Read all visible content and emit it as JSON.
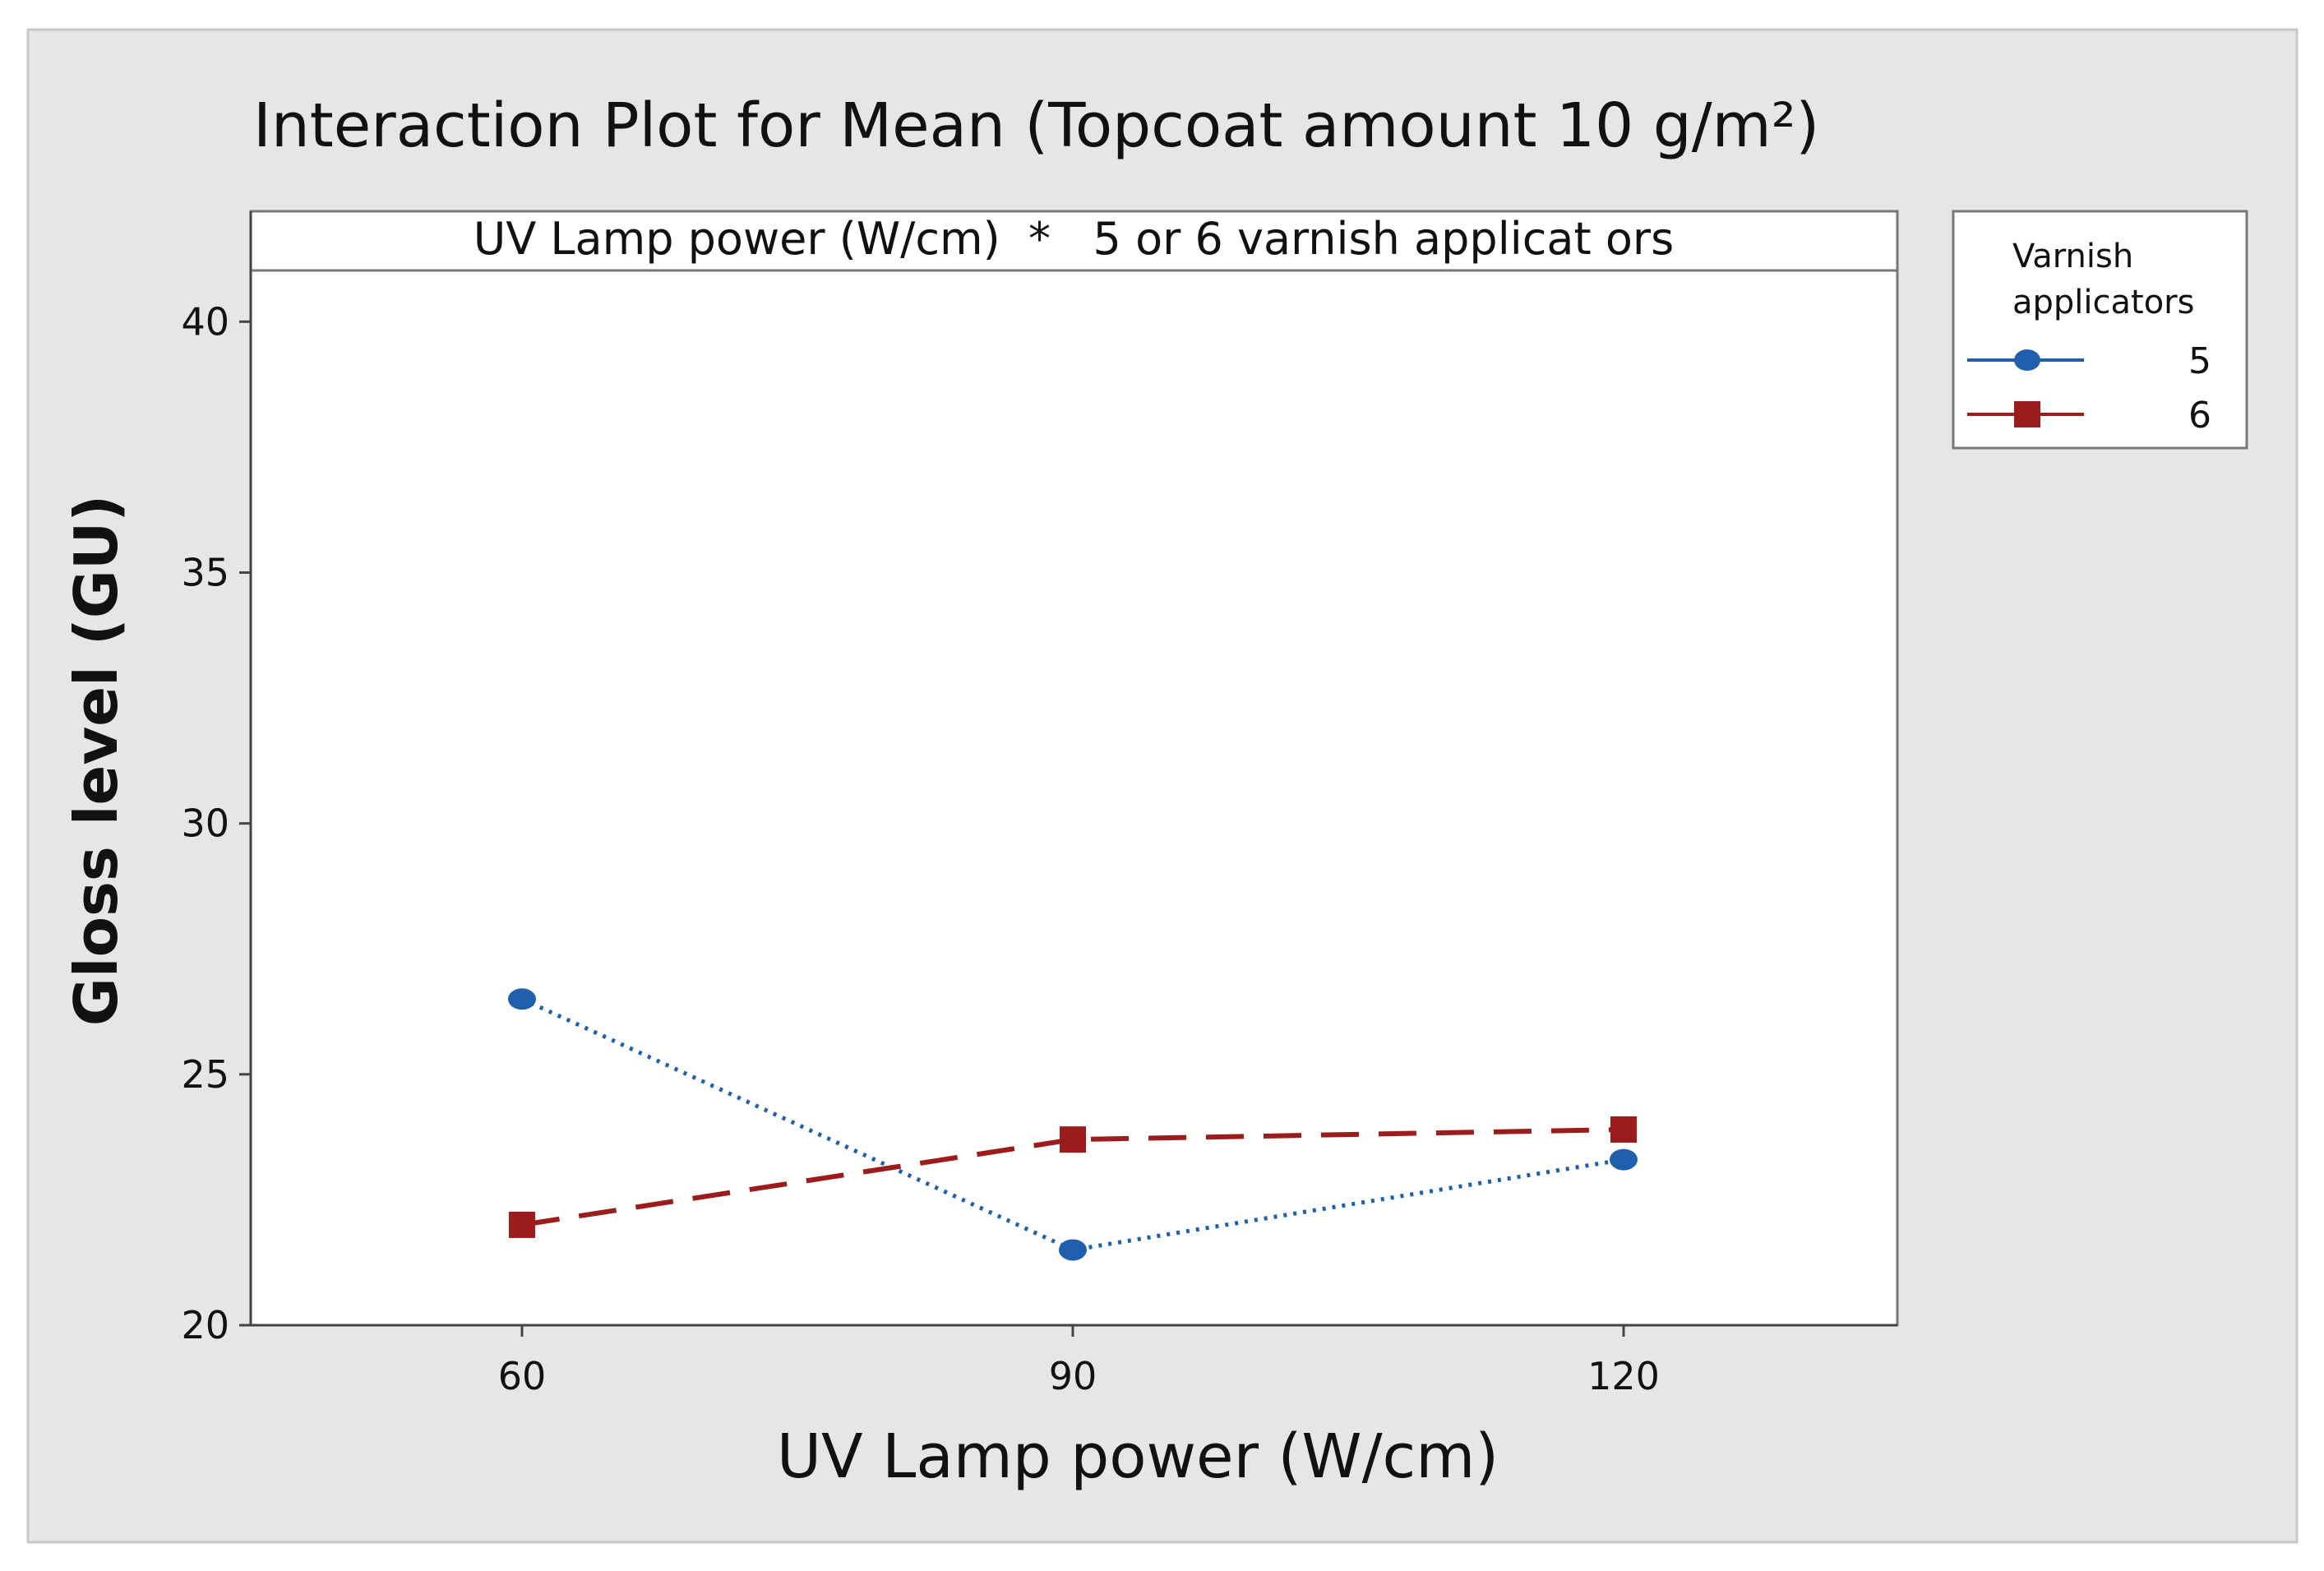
{
  "chart_data": {
    "type": "line",
    "title": "Interaction Plot for Mean (Topcoat amount 10 g/m²)",
    "subtitle": "UV Lamp power (W/cm)  *   5 or 6 varnish applicat ors",
    "xlabel": "UV Lamp power (W/cm)",
    "ylabel": "Gloss level (GU)",
    "categories": [
      "60",
      "90",
      "120"
    ],
    "x": [
      60,
      90,
      120
    ],
    "yticks": [
      "20",
      "25",
      "30",
      "35",
      "40"
    ],
    "ylim": [
      20,
      42.2
    ],
    "grid": false,
    "legend": {
      "title_line1": "Varnish",
      "title_line2": "applicators",
      "position": "right"
    },
    "series": [
      {
        "name": "5",
        "values": [
          26.5,
          21.5,
          23.3
        ],
        "color": "#1f5fae",
        "marker": "circle",
        "style": "dotted"
      },
      {
        "name": "6",
        "values": [
          22.0,
          23.7,
          23.9
        ],
        "color": "#9c1b1b",
        "marker": "square",
        "style": "dashed"
      }
    ]
  },
  "colors": {
    "background_outer": "#e6e6e6",
    "plot_background": "#ffffff"
  }
}
